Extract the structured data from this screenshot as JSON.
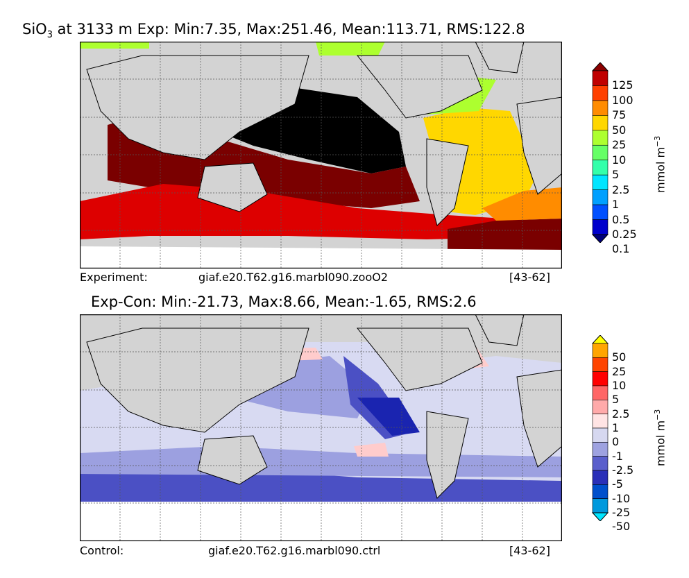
{
  "top": {
    "title_prefix": "SiO",
    "title_sub": "3",
    "title_rest": " at 3133 m Exp: Min:7.35, Max:251.46, Mean:113.71, RMS:122.8",
    "caption_label": "Experiment:",
    "caption_run": "giaf.e20.T62.g16.marbl090.zooO2",
    "caption_years": "[43-62]",
    "colorbar": {
      "labels": [
        "125",
        "100",
        "75",
        "50",
        "25",
        "10",
        "5",
        "2.5",
        "1",
        "0.5",
        "0.25",
        "0.1"
      ],
      "colors": [
        "#8b0000",
        "#c00000",
        "#ff4000",
        "#ff8c00",
        "#ffd700",
        "#adff2f",
        "#66ff66",
        "#33ffaa",
        "#00e5ff",
        "#00a0ff",
        "#0050ff",
        "#0000cc",
        "#00007a"
      ],
      "unit": "mmol m",
      "unit_exp": "−3"
    },
    "map_colors": {
      "land": "#d3d3d3",
      "black": "#000000",
      "darkred": "#7a0000",
      "red": "#dd0000",
      "orange": "#ff8c00",
      "yellow": "#ffd700",
      "lime": "#adff2f",
      "white": "#ffffff"
    }
  },
  "bottom": {
    "title": "Exp-Con: Min:-21.73, Max:8.66, Mean:-1.65, RMS:2.6",
    "caption_label": "Control:",
    "caption_run": "giaf.e20.T62.g16.marbl090.ctrl",
    "caption_years": "[43-62]",
    "colorbar": {
      "labels": [
        "50",
        "25",
        "10",
        "5",
        "2.5",
        "1",
        "0",
        "-1",
        "-2.5",
        "-5",
        "-10",
        "-25",
        "-50"
      ],
      "colors": [
        "#ffff00",
        "#ffa500",
        "#ff4500",
        "#ff0000",
        "#ff6666",
        "#ffaaaa",
        "#ffe4e4",
        "#d6d8f0",
        "#9ea2e0",
        "#5a5fcc",
        "#2a2fb8",
        "#0050cc",
        "#0099dd",
        "#00e5ff"
      ],
      "unit": "mmol m",
      "unit_exp": "−3"
    },
    "map_colors": {
      "land": "#d3d3d3",
      "lightblue": "#d8daf2",
      "midblue": "#9ca0e0",
      "blue": "#4b50c4",
      "darkblue": "#1a24b0",
      "pink": "#ffcccc",
      "red": "#ff2020",
      "white": "#ffffff"
    }
  }
}
